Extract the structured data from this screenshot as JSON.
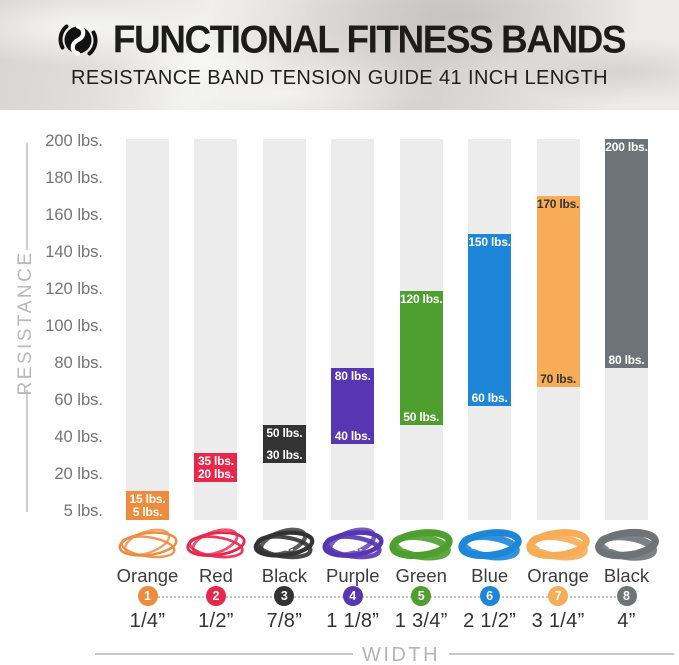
{
  "header": {
    "title": "FUNCTIONAL FITNESS BANDS",
    "subtitle": "RESISTANCE BAND TENSION GUIDE 41 INCH LENGTH",
    "logo": "swirl-logo"
  },
  "chart_data": {
    "type": "bar",
    "subtype": "floating-range-bars",
    "title": "FUNCTIONAL FITNESS BANDS — RESISTANCE BAND TENSION GUIDE 41 INCH LENGTH",
    "ylabel": "RESISTANCE",
    "xlabel": "WIDTH",
    "ylim": [
      0,
      200
    ],
    "grid": false,
    "yticks": [
      {
        "value": 200,
        "label": "200 lbs."
      },
      {
        "value": 180,
        "label": "180 lbs."
      },
      {
        "value": 160,
        "label": "160 lbs."
      },
      {
        "value": 140,
        "label": "140 lbs."
      },
      {
        "value": 120,
        "label": "120 lbs."
      },
      {
        "value": 100,
        "label": "100 lbs."
      },
      {
        "value": 80,
        "label": "80 lbs."
      },
      {
        "value": 60,
        "label": "60 lbs."
      },
      {
        "value": 40,
        "label": "40 lbs."
      },
      {
        "value": 20,
        "label": "20 lbs."
      },
      {
        "value": 5,
        "label": "5 lbs."
      }
    ],
    "bands": [
      {
        "number": 1,
        "color_name": "Orange",
        "width_label": "1/4”",
        "min": 5,
        "max": 15,
        "min_label": "5 lbs.",
        "max_label": "15 lbs.",
        "color": "#EE8B3D",
        "text_color": "#ffffff"
      },
      {
        "number": 2,
        "color_name": "Red",
        "width_label": "1/2”",
        "min": 20,
        "max": 35,
        "min_label": "20 lbs.",
        "max_label": "35 lbs.",
        "color": "#E8274B",
        "text_color": "#ffffff"
      },
      {
        "number": 3,
        "color_name": "Black",
        "width_label": "7/8”",
        "min": 30,
        "max": 50,
        "min_label": "30 lbs.",
        "max_label": "50 lbs.",
        "color": "#333333",
        "text_color": "#ffffff"
      },
      {
        "number": 4,
        "color_name": "Purple",
        "width_label": "1 1/8”",
        "min": 40,
        "max": 80,
        "min_label": "40 lbs.",
        "max_label": "80 lbs.",
        "color": "#5636B2",
        "text_color": "#ffffff"
      },
      {
        "number": 5,
        "color_name": "Green",
        "width_label": "1 3/4”",
        "min": 50,
        "max": 120,
        "min_label": "50 lbs.",
        "max_label": "120 lbs.",
        "color": "#4E9F2F",
        "text_color": "#ffffff"
      },
      {
        "number": 6,
        "color_name": "Blue",
        "width_label": "2 1/2”",
        "min": 60,
        "max": 150,
        "min_label": "60 lbs.",
        "max_label": "150 lbs.",
        "color": "#1D86D8",
        "text_color": "#ffffff"
      },
      {
        "number": 7,
        "color_name": "Orange",
        "width_label": "3 1/4”",
        "min": 70,
        "max": 170,
        "min_label": "70 lbs.",
        "max_label": "170 lbs.",
        "color": "#F7AC55",
        "text_color": "#333333"
      },
      {
        "number": 8,
        "color_name": "Black",
        "width_label": "4”",
        "min": 80,
        "max": 200,
        "min_label": "80 lbs.",
        "max_label": "200 lbs.",
        "color": "#6E7377",
        "text_color": "#ffffff"
      }
    ]
  }
}
